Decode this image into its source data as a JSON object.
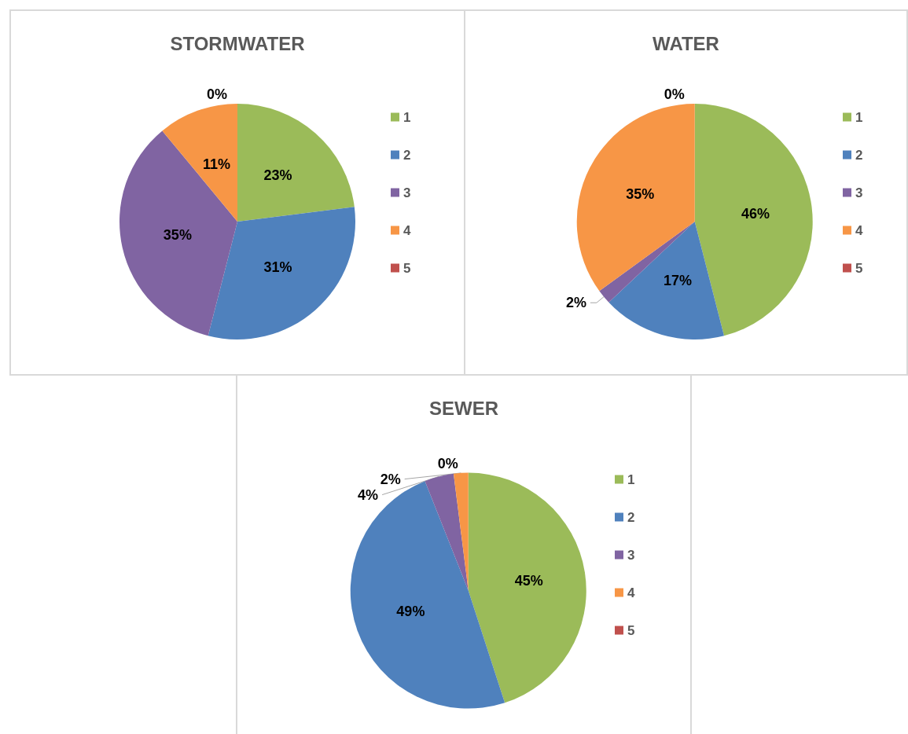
{
  "chart_data": [
    {
      "type": "pie",
      "title": "STORMWATER",
      "categories": [
        "1",
        "2",
        "3",
        "4",
        "5"
      ],
      "values": [
        23,
        31,
        35,
        11,
        0
      ],
      "value_labels": [
        "23%",
        "31%",
        "35%",
        "11%",
        "0%"
      ],
      "colors": [
        "#9bbb59",
        "#4f81bd",
        "#8064a2",
        "#f79646",
        "#c0504d"
      ],
      "legend": "right"
    },
    {
      "type": "pie",
      "title": "WATER",
      "categories": [
        "1",
        "2",
        "3",
        "4",
        "5"
      ],
      "values": [
        46,
        17,
        2,
        35,
        0
      ],
      "value_labels": [
        "46%",
        "17%",
        "2%",
        "35%",
        "0%"
      ],
      "colors": [
        "#9bbb59",
        "#4f81bd",
        "#8064a2",
        "#f79646",
        "#c0504d"
      ],
      "legend": "right"
    },
    {
      "type": "pie",
      "title": "SEWER",
      "categories": [
        "1",
        "2",
        "3",
        "4",
        "5"
      ],
      "values": [
        45,
        49,
        4,
        2,
        0
      ],
      "value_labels": [
        "45%",
        "49%",
        "4%",
        "2%",
        "0%"
      ],
      "colors": [
        "#9bbb59",
        "#4f81bd",
        "#8064a2",
        "#f79646",
        "#c0504d"
      ],
      "legend": "right"
    }
  ]
}
